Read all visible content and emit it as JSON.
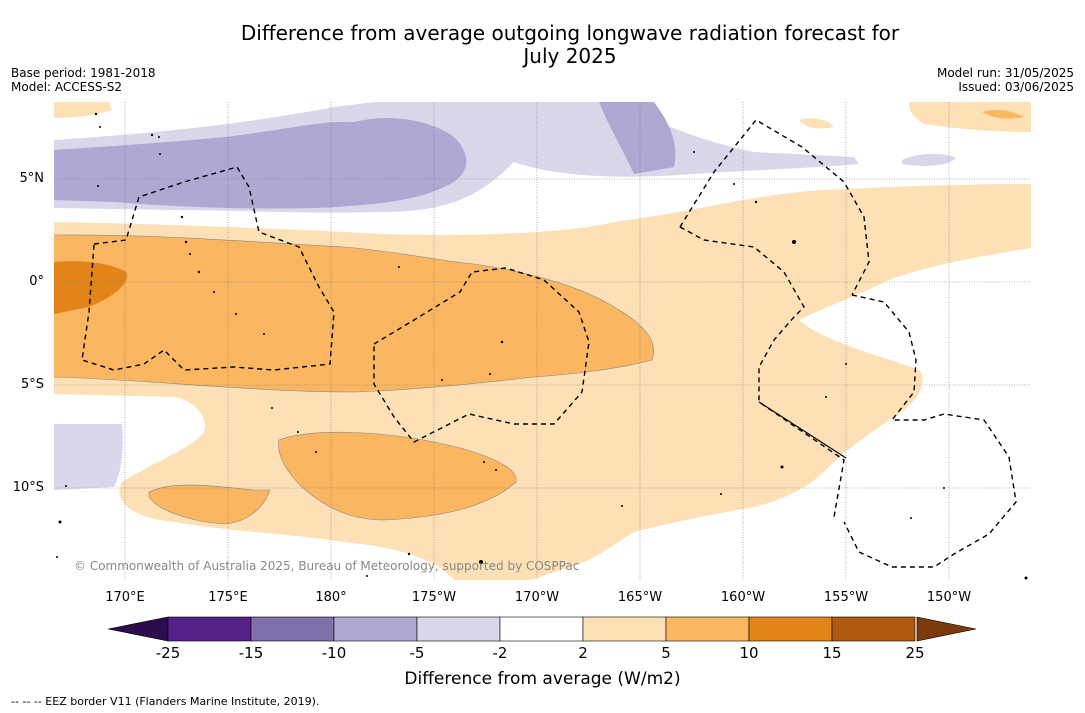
{
  "header": {
    "title_line1": "Difference from average outgoing longwave radiation forecast for",
    "title_line2": "July 2025",
    "base_period": "Base period: 1981-2018",
    "model": "Model: ACCESS-S2",
    "model_run": "Model run: 31/05/2025",
    "issued": "Issued: 03/06/2025"
  },
  "map": {
    "lat_labels": [
      "5°N",
      "0°",
      "5°S",
      "10°S"
    ],
    "lon_labels": [
      "170°E",
      "175°E",
      "180°",
      "175°W",
      "170°W",
      "165°W",
      "160°W",
      "155°W",
      "150°W"
    ],
    "copyright": "© Commonwealth of Australia 2025, Bureau of Meteorology, supported by COSPPac"
  },
  "colorbar": {
    "ticks": [
      "-25",
      "-15",
      "-10",
      "-5",
      "-2",
      "2",
      "5",
      "10",
      "15",
      "25"
    ],
    "colors": [
      "#552288",
      "#7f70aa",
      "#b0a8d2",
      "#d8d8ea",
      "#ffffff",
      "#fde0b6",
      "#fbb661",
      "#e28418",
      "#b05a10"
    ],
    "under_color": "#2e0a4e",
    "over_color": "#7a3a0c",
    "label": "Difference from average (W/m2)"
  },
  "footnote": "--  --  -- EEZ border V11 (Flanders Marine Institute, 2019)."
}
